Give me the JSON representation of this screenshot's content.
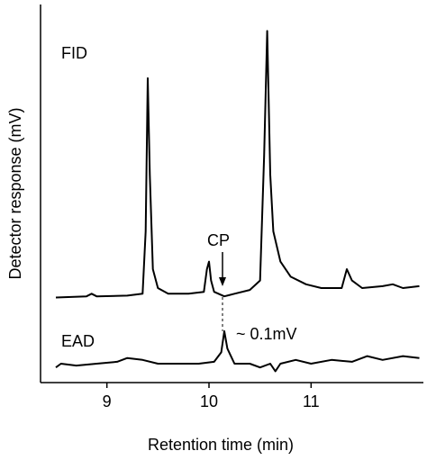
{
  "chart_data": {
    "type": "line",
    "x_label": "Retention time (min)",
    "y_label": "Detector response (mV)",
    "xlim": [
      8.35,
      12.1
    ],
    "xticks": [
      9,
      10,
      11
    ],
    "ylim": [
      0,
      100
    ],
    "series": [
      {
        "name": "FID",
        "color": "#000000",
        "x": [
          8.5,
          8.8,
          8.85,
          8.9,
          9.2,
          9.35,
          9.38,
          9.4,
          9.42,
          9.45,
          9.5,
          9.6,
          9.8,
          9.95,
          9.98,
          10.0,
          10.02,
          10.05,
          10.15,
          10.25,
          10.4,
          10.5,
          10.54,
          10.57,
          10.6,
          10.63,
          10.7,
          10.8,
          10.95,
          11.1,
          11.3,
          11.35,
          11.4,
          11.5,
          11.7,
          11.8,
          11.9,
          12.06
        ],
        "values": [
          22.5,
          22.8,
          23.5,
          22.8,
          23,
          23.5,
          40,
          80.5,
          55,
          30,
          25,
          23.5,
          23.5,
          24,
          30,
          32,
          27,
          24,
          22.8,
          23.5,
          24.5,
          27,
          60,
          93,
          55,
          40,
          32,
          28,
          26,
          25,
          25,
          30,
          27,
          25,
          25.5,
          26,
          25,
          25.5
        ]
      },
      {
        "name": "EAD",
        "color": "#000000",
        "x": [
          8.5,
          8.55,
          8.7,
          8.9,
          9.1,
          9.2,
          9.35,
          9.5,
          9.7,
          9.9,
          10.05,
          10.12,
          10.15,
          10.18,
          10.25,
          10.4,
          10.5,
          10.6,
          10.65,
          10.7,
          10.85,
          11.0,
          11.2,
          11.4,
          11.55,
          11.7,
          11.9,
          12.06
        ],
        "values": [
          4,
          5,
          4.5,
          5,
          5.5,
          6.5,
          6,
          5,
          5,
          5,
          5.5,
          8,
          13.6,
          9,
          5,
          5,
          4,
          5,
          3,
          5,
          6,
          5,
          6,
          5.5,
          7,
          6,
          7,
          6.5
        ]
      }
    ],
    "annotations": [
      "CP",
      "~ 0.1mV"
    ]
  }
}
